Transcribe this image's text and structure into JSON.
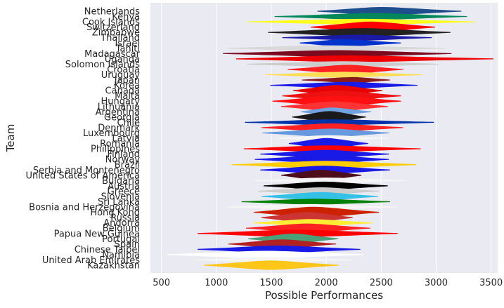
{
  "chart_data": {
    "type": "violin",
    "orientation": "horizontal",
    "xlabel": "Possible Performances",
    "ylabel": "Team",
    "xlim": [
      400,
      3560
    ],
    "xticks": [
      500,
      1000,
      1500,
      2000,
      2500,
      3000,
      3500
    ],
    "grid": true,
    "background": "#eaeaf2",
    "series": [
      {
        "team": "Netherlands",
        "min": 1920,
        "max": 3230,
        "center": 2500,
        "half_width": 0.35,
        "color": "#1f4e8c"
      },
      {
        "team": "Kenya",
        "min": 1530,
        "max": 3280,
        "center": 2430,
        "half_width": 0.25,
        "color": "#00875a"
      },
      {
        "team": "Cook Islands",
        "min": 1280,
        "max": 3360,
        "center": 2350,
        "half_width": 0.2,
        "color": "#ffff1a"
      },
      {
        "team": "Switzerland",
        "min": 1860,
        "max": 2990,
        "center": 2400,
        "half_width": 0.5,
        "color": "#ff0000"
      },
      {
        "team": "Zimbabwe",
        "min": 1470,
        "max": 3130,
        "center": 2330,
        "half_width": 0.35,
        "color": "#222222"
      },
      {
        "team": "Thailand",
        "min": 1600,
        "max": 2960,
        "center": 2300,
        "half_width": 0.2,
        "color": "#1a1aa6"
      },
      {
        "team": "Israel",
        "min": 1760,
        "max": 2680,
        "center": 2150,
        "half_width": 0.3,
        "color": "#0033cc"
      },
      {
        "team": "Tahiti",
        "min": 1100,
        "max": 3080,
        "center": 2000,
        "half_width": 0.2,
        "color": "#d9d9d9"
      },
      {
        "team": "Madagascar",
        "min": 1060,
        "max": 3140,
        "center": 2100,
        "half_width": 0.25,
        "color": "#7b0a1f"
      },
      {
        "team": "Uganda",
        "min": 1180,
        "max": 3520,
        "center": 2200,
        "half_width": 0.25,
        "color": "#ee0000"
      },
      {
        "team": "Solomon Islands",
        "min": 1280,
        "max": 3020,
        "center": 2150,
        "half_width": 0.2,
        "color": "#cccccc"
      },
      {
        "team": "Croatia",
        "min": 1650,
        "max": 2700,
        "center": 2200,
        "half_width": 0.4,
        "color": "#ff2222"
      },
      {
        "team": "Uruguay",
        "min": 1450,
        "max": 2870,
        "center": 2150,
        "half_width": 0.2,
        "color": "#ffdd55"
      },
      {
        "team": "Japan",
        "min": 1780,
        "max": 2580,
        "center": 2250,
        "half_width": 0.2,
        "color": "#8b1a1a"
      },
      {
        "team": "Korea",
        "min": 1490,
        "max": 2830,
        "center": 2200,
        "half_width": 0.25,
        "color": "#1a1ae6"
      },
      {
        "team": "Canada",
        "min": 1700,
        "max": 2510,
        "center": 2100,
        "half_width": 0.5,
        "color": "#e60000"
      },
      {
        "team": "Malta",
        "min": 1600,
        "max": 2680,
        "center": 2100,
        "half_width": 0.5,
        "color": "#ee1111"
      },
      {
        "team": "Hungary",
        "min": 1510,
        "max": 2680,
        "center": 2100,
        "half_width": 0.5,
        "color": "#ff1111"
      },
      {
        "team": "Lithuania",
        "min": 1590,
        "max": 2560,
        "center": 2080,
        "half_width": 0.45,
        "color": "#ff3333"
      },
      {
        "team": "Argentina",
        "min": 1770,
        "max": 2410,
        "center": 2050,
        "half_width": 0.35,
        "color": "#6ea3e0"
      },
      {
        "team": "Georgia",
        "min": 1690,
        "max": 2360,
        "center": 2030,
        "half_width": 0.55,
        "color": "#1a1a1a"
      },
      {
        "team": "Chile",
        "min": 1260,
        "max": 2980,
        "center": 2050,
        "half_width": 0.2,
        "color": "#0033aa"
      },
      {
        "team": "Denmark",
        "min": 1410,
        "max": 2700,
        "center": 2050,
        "half_width": 0.35,
        "color": "#ff2222"
      },
      {
        "team": "Luxembourg",
        "min": 1420,
        "max": 2570,
        "center": 2050,
        "half_width": 0.35,
        "color": "#6699dd"
      },
      {
        "team": "Latvia",
        "min": 1560,
        "max": 2560,
        "center": 2020,
        "half_width": 0.2,
        "color": "#f5f5f5"
      },
      {
        "team": "Romania",
        "min": 1660,
        "max": 2380,
        "center": 2000,
        "half_width": 0.5,
        "color": "#1a1ae6"
      },
      {
        "team": "Philippines",
        "min": 1250,
        "max": 2860,
        "center": 2000,
        "half_width": 0.25,
        "color": "#ff0000"
      },
      {
        "team": "Finland",
        "min": 1400,
        "max": 2570,
        "center": 2000,
        "half_width": 0.35,
        "color": "#1a1ae6"
      },
      {
        "team": "Norway",
        "min": 1350,
        "max": 2570,
        "center": 2000,
        "half_width": 0.35,
        "color": "#1a1ae6"
      },
      {
        "team": "Brazil",
        "min": 1140,
        "max": 2820,
        "center": 2000,
        "half_width": 0.3,
        "color": "#ffcc00"
      },
      {
        "team": "Serbia and Montenegro",
        "min": 1400,
        "max": 2580,
        "center": 1980,
        "half_width": 0.35,
        "color": "#1a1ae6"
      },
      {
        "team": "United States of America",
        "min": 1590,
        "max": 2320,
        "center": 1950,
        "half_width": 0.5,
        "color": "#4d0d1a"
      },
      {
        "team": "Bulgaria",
        "min": 1350,
        "max": 2730,
        "center": 2000,
        "half_width": 0.2,
        "color": "#f5f5f5"
      },
      {
        "team": "Austria",
        "min": 1430,
        "max": 2560,
        "center": 1980,
        "half_width": 0.35,
        "color": "#000000"
      },
      {
        "team": "Greece",
        "min": 1380,
        "max": 2480,
        "center": 1960,
        "half_width": 0.3,
        "color": "#cccccc"
      },
      {
        "team": "Slovenia",
        "min": 1410,
        "max": 2470,
        "center": 1950,
        "half_width": 0.35,
        "color": "#33c1e6"
      },
      {
        "team": "Sri Lanka",
        "min": 1230,
        "max": 2580,
        "center": 1900,
        "half_width": 0.2,
        "color": "#008000"
      },
      {
        "team": "Bosnia and Herzegovina",
        "min": 1100,
        "max": 2650,
        "center": 1850,
        "half_width": 0.2,
        "color": "#f5f5f5"
      },
      {
        "team": "Hong Kong",
        "min": 1340,
        "max": 2480,
        "center": 1880,
        "half_width": 0.5,
        "color": "#cc2200"
      },
      {
        "team": "Russia",
        "min": 1410,
        "max": 2240,
        "center": 1830,
        "half_width": 0.5,
        "color": "#cc3333"
      },
      {
        "team": "Andorra",
        "min": 1340,
        "max": 2420,
        "center": 1850,
        "half_width": 0.3,
        "color": "#ffee33"
      },
      {
        "team": "Belgium",
        "min": 1270,
        "max": 2400,
        "center": 1820,
        "half_width": 0.4,
        "color": "#ff2222"
      },
      {
        "team": "Papua New Guinea",
        "min": 830,
        "max": 2650,
        "center": 1740,
        "half_width": 0.3,
        "color": "#ff0000"
      },
      {
        "team": "Portugal",
        "min": 1290,
        "max": 2110,
        "center": 1700,
        "half_width": 0.45,
        "color": "#4aa078"
      },
      {
        "team": "Spain",
        "min": 1110,
        "max": 2090,
        "center": 1600,
        "half_width": 0.4,
        "color": "#b22222"
      },
      {
        "team": "Chinese Taipei",
        "min": 830,
        "max": 2310,
        "center": 1570,
        "half_width": 0.3,
        "color": "#1a1ae6"
      },
      {
        "team": "Namibia",
        "min": 550,
        "max": 2340,
        "center": 1450,
        "half_width": 0.3,
        "color": "#ffffff"
      },
      {
        "team": "United Arab Emirates",
        "min": 800,
        "max": 2250,
        "center": 1500,
        "half_width": 0.2,
        "color": "#f5f5f5"
      },
      {
        "team": "Kazakhstan",
        "min": 890,
        "max": 2110,
        "center": 1500,
        "half_width": 0.4,
        "color": "#ffc61a"
      }
    ]
  }
}
